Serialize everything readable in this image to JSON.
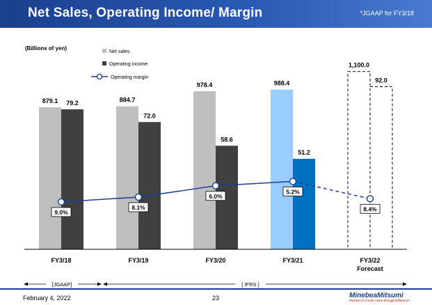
{
  "header": {
    "title": "Net Sales, Operating Income/ Margin",
    "note": "*JGAAP for FY3/18"
  },
  "chart_data": {
    "type": "bar",
    "unit_label": "(Billions of yen)",
    "categories": [
      "FY3/18",
      "FY3/19",
      "FY3/20",
      "FY3/21",
      "FY3/22"
    ],
    "category_sublabels": [
      "",
      "",
      "",
      "",
      "Forecast"
    ],
    "series": [
      {
        "name": "Net sales",
        "values": [
          879.1,
          884.7,
          978.4,
          988.4,
          1100.0
        ],
        "labels": [
          "879.1",
          "884.7",
          "978.4",
          "988.4",
          "1,100.0"
        ],
        "color": "#bfbfbf",
        "highlight_color": "#99ccff"
      },
      {
        "name": "Operating income",
        "values": [
          79.2,
          72.0,
          58.6,
          51.2,
          92.0
        ],
        "labels": [
          "79.2",
          "72.0",
          "58.6",
          "51.2",
          "92.0"
        ],
        "color": "#404040",
        "highlight_color": "#0070c0"
      },
      {
        "name": "Operating margin",
        "values": [
          9.0,
          8.1,
          6.0,
          5.2,
          8.4
        ],
        "labels": [
          "9.0%",
          "8.1%",
          "6.0%",
          "5.2%",
          "8.4%"
        ],
        "color": "#1a3f8f"
      }
    ],
    "highlight_index": 3,
    "forecast_index": 4,
    "standards": {
      "jgaap": "[JGAAP]",
      "ifrs": "[ IFRS ]"
    }
  },
  "footer": {
    "date": "February 4, 2022",
    "page": "23",
    "logo": "MinebeaMitsumi",
    "tagline": "Passion to Create Value through Difference"
  }
}
